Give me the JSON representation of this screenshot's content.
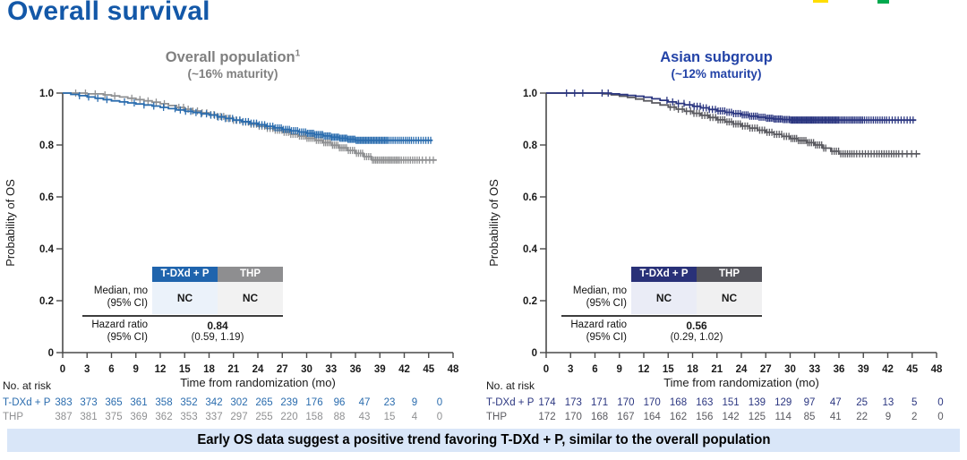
{
  "page": {
    "title": "Overall survival",
    "banner": "Early OS data suggest a positive trend favoring T-DXd + P, similar to the overall population",
    "banner_bg": "#D9E6F8",
    "title_color": "#1358A8",
    "logo_marks": [
      {
        "name": "logo-fragment-yellow",
        "color": "#FFDD00",
        "x": 908,
        "w": 17,
        "h": 3
      },
      {
        "name": "logo-fragment-green",
        "color": "#00A94E",
        "x": 980,
        "w": 13,
        "h": 4
      }
    ]
  },
  "chart_data": [
    {
      "type": "line",
      "subtype": "kaplan-meier",
      "title": "Overall population",
      "title_superscript": "1",
      "subtitle": "(~16% maturity)",
      "title_color": "#808080",
      "xlabel": "Time from randomization (mo)",
      "ylabel": "Probability of OS",
      "xlim": [
        0,
        48
      ],
      "ylim": [
        0,
        1.0
      ],
      "xticks": [
        0,
        3,
        6,
        9,
        12,
        15,
        18,
        21,
        24,
        27,
        30,
        33,
        36,
        39,
        42,
        45,
        48
      ],
      "ytick_labels": [
        "1.0",
        "0.8",
        "0.6",
        "0.4",
        "0.2",
        "0"
      ],
      "ytick_values": [
        1.0,
        0.8,
        0.6,
        0.4,
        0.2,
        0
      ],
      "series": [
        {
          "name": "THP",
          "color": "#8F9092",
          "points": [
            [
              0,
              1
            ],
            [
              3,
              0.997
            ],
            [
              5,
              0.993
            ],
            [
              6,
              0.989
            ],
            [
              7,
              0.985
            ],
            [
              8,
              0.98
            ],
            [
              9,
              0.975
            ],
            [
              10,
              0.97
            ],
            [
              11,
              0.965
            ],
            [
              12,
              0.959
            ],
            [
              13,
              0.952
            ],
            [
              14,
              0.945
            ],
            [
              15,
              0.938
            ],
            [
              16,
              0.931
            ],
            [
              17,
              0.924
            ],
            [
              18,
              0.917
            ],
            [
              19,
              0.91
            ],
            [
              20,
              0.903
            ],
            [
              21,
              0.895
            ],
            [
              22,
              0.888
            ],
            [
              23,
              0.88
            ],
            [
              24,
              0.872
            ],
            [
              25,
              0.864
            ],
            [
              26,
              0.857
            ],
            [
              27,
              0.849
            ],
            [
              28,
              0.841
            ],
            [
              29,
              0.834
            ],
            [
              30,
              0.826
            ],
            [
              31,
              0.818
            ],
            [
              32,
              0.809
            ],
            [
              33,
              0.799
            ],
            [
              34,
              0.789
            ],
            [
              35,
              0.779
            ],
            [
              36,
              0.768
            ],
            [
              37,
              0.755
            ],
            [
              38,
              0.742
            ],
            [
              46,
              0.742
            ]
          ],
          "censor_bands": [
            [
              1,
              7,
              5
            ],
            [
              8,
              13,
              5
            ],
            [
              14,
              18,
              7
            ],
            [
              18,
              22,
              10
            ],
            [
              22,
              26,
              12
            ],
            [
              26,
              29,
              11
            ],
            [
              29,
              32,
              13
            ],
            [
              32,
              35,
              14
            ],
            [
              35,
              38,
              12
            ],
            [
              38,
              41.5,
              18
            ],
            [
              41.5,
              44,
              9
            ],
            [
              44,
              45.8,
              4
            ]
          ]
        },
        {
          "name": "T-DXd + P",
          "color": "#2A6CAE",
          "points": [
            [
              0,
              1
            ],
            [
              1,
              0.995
            ],
            [
              2,
              0.99
            ],
            [
              3,
              0.985
            ],
            [
              4,
              0.98
            ],
            [
              5,
              0.975
            ],
            [
              6,
              0.97
            ],
            [
              7,
              0.966
            ],
            [
              8,
              0.962
            ],
            [
              9,
              0.958
            ],
            [
              10,
              0.954
            ],
            [
              11,
              0.95
            ],
            [
              12,
              0.945
            ],
            [
              13,
              0.94
            ],
            [
              14,
              0.935
            ],
            [
              15,
              0.93
            ],
            [
              16,
              0.925
            ],
            [
              17,
              0.92
            ],
            [
              18,
              0.915
            ],
            [
              19,
              0.908
            ],
            [
              20,
              0.902
            ],
            [
              21,
              0.896
            ],
            [
              22,
              0.89
            ],
            [
              23,
              0.884
            ],
            [
              24,
              0.878
            ],
            [
              25,
              0.872
            ],
            [
              26,
              0.866
            ],
            [
              27,
              0.86
            ],
            [
              28,
              0.855
            ],
            [
              29,
              0.85
            ],
            [
              30,
              0.845
            ],
            [
              31,
              0.84
            ],
            [
              32,
              0.835
            ],
            [
              33,
              0.83
            ],
            [
              34,
              0.826
            ],
            [
              35,
              0.822
            ],
            [
              36,
              0.818
            ],
            [
              45.5,
              0.818
            ]
          ],
          "censor_bands": [
            [
              1.5,
              6,
              4
            ],
            [
              7,
              13,
              5
            ],
            [
              13.5,
              18,
              7
            ],
            [
              18,
              22,
              9
            ],
            [
              22,
              26,
              12
            ],
            [
              26,
              30,
              16
            ],
            [
              30,
              33,
              16
            ],
            [
              33,
              36,
              18
            ],
            [
              36,
              40,
              24
            ],
            [
              40,
              43,
              12
            ],
            [
              43,
              45.4,
              8
            ]
          ]
        }
      ],
      "stats_table": {
        "columns": [
          {
            "label": "T-DXd + P",
            "header_bg": "#1F64AD",
            "cell_bg": "#EBF2FA"
          },
          {
            "label": "THP",
            "header_bg": "#8E8E90",
            "cell_bg": "#F2F2F2"
          }
        ],
        "median_label": [
          "Median, mo",
          "(95% CI)"
        ],
        "median_values": [
          "NC",
          "NC"
        ],
        "hazard_label": [
          "Hazard ratio",
          "(95% CI)"
        ],
        "hazard_value": "0.84",
        "hazard_ci": "(0.59, 1.19)"
      },
      "at_risk": {
        "label": "No. at risk",
        "rows": [
          {
            "name": "T-DXd + P",
            "color": "#2A6CAE",
            "values": [
              383,
              373,
              365,
              361,
              358,
              352,
              342,
              302,
              265,
              239,
              176,
              96,
              47,
              23,
              9,
              0
            ]
          },
          {
            "name": "THP",
            "color": "#8F9092",
            "values": [
              387,
              381,
              375,
              369,
              362,
              353,
              337,
              297,
              255,
              220,
              158,
              88,
              43,
              15,
              4,
              0
            ]
          }
        ]
      }
    },
    {
      "type": "line",
      "subtype": "kaplan-meier",
      "title": "Asian subgroup",
      "title_superscript": "",
      "subtitle": "(~12% maturity)",
      "title_color": "#2343A7",
      "xlabel": "Time from randomization (mo)",
      "ylabel": "Probability of OS",
      "xlim": [
        0,
        48
      ],
      "ylim": [
        0,
        1.0
      ],
      "xticks": [
        0,
        3,
        6,
        9,
        12,
        15,
        18,
        21,
        24,
        27,
        30,
        33,
        36,
        39,
        42,
        45,
        48
      ],
      "ytick_labels": [
        "1.0",
        "0.8",
        "0.6",
        "0.4",
        "0.2",
        "0"
      ],
      "ytick_values": [
        1.0,
        0.8,
        0.6,
        0.4,
        0.2,
        0
      ],
      "series": [
        {
          "name": "THP",
          "color": "#5A5A60",
          "points": [
            [
              0,
              1
            ],
            [
              7,
              0.997
            ],
            [
              8,
              0.993
            ],
            [
              9,
              0.988
            ],
            [
              10,
              0.983
            ],
            [
              11,
              0.977
            ],
            [
              12,
              0.97
            ],
            [
              13,
              0.962
            ],
            [
              14,
              0.954
            ],
            [
              15,
              0.946
            ],
            [
              16,
              0.938
            ],
            [
              17,
              0.93
            ],
            [
              18,
              0.922
            ],
            [
              19,
              0.914
            ],
            [
              20,
              0.906
            ],
            [
              21,
              0.897
            ],
            [
              22,
              0.889
            ],
            [
              23,
              0.881
            ],
            [
              24,
              0.873
            ],
            [
              25,
              0.865
            ],
            [
              26,
              0.857
            ],
            [
              27,
              0.849
            ],
            [
              28,
              0.841
            ],
            [
              29,
              0.833
            ],
            [
              30,
              0.825
            ],
            [
              31,
              0.817
            ],
            [
              32,
              0.809
            ],
            [
              33,
              0.8
            ],
            [
              34,
              0.788
            ],
            [
              35,
              0.776
            ],
            [
              36,
              0.766
            ],
            [
              46,
              0.766
            ]
          ],
          "censor_bands": [
            [
              15,
              18,
              6
            ],
            [
              18,
              21,
              9
            ],
            [
              21,
              24,
              11
            ],
            [
              24,
              27,
              10
            ],
            [
              27,
              30,
              10
            ],
            [
              30,
              32.5,
              11
            ],
            [
              32.5,
              34.5,
              8
            ],
            [
              35,
              38,
              11
            ],
            [
              38,
              40.5,
              7
            ],
            [
              40.5,
              43.5,
              10
            ],
            [
              43.5,
              45.8,
              4
            ]
          ]
        },
        {
          "name": "T-DXd + P",
          "color": "#2B3680",
          "points": [
            [
              0,
              1
            ],
            [
              8,
              0.997
            ],
            [
              9,
              0.994
            ],
            [
              10,
              0.991
            ],
            [
              11,
              0.988
            ],
            [
              12,
              0.984
            ],
            [
              13,
              0.978
            ],
            [
              14,
              0.972
            ],
            [
              15,
              0.966
            ],
            [
              16,
              0.96
            ],
            [
              17,
              0.955
            ],
            [
              18,
              0.949
            ],
            [
              19,
              0.943
            ],
            [
              20,
              0.937
            ],
            [
              21,
              0.931
            ],
            [
              22,
              0.926
            ],
            [
              23,
              0.921
            ],
            [
              24,
              0.916
            ],
            [
              25,
              0.911
            ],
            [
              26,
              0.907
            ],
            [
              27,
              0.903
            ],
            [
              28,
              0.9
            ],
            [
              29,
              0.898
            ],
            [
              30,
              0.896
            ],
            [
              45.5,
              0.896
            ]
          ],
          "censor_bands": [
            [
              2,
              5,
              3
            ],
            [
              6.5,
              8,
              2
            ],
            [
              14.5,
              18,
              5
            ],
            [
              18,
              21,
              8
            ],
            [
              21,
              24,
              11
            ],
            [
              24,
              27,
              13
            ],
            [
              27,
              30,
              16
            ],
            [
              30,
              33,
              22
            ],
            [
              33,
              36,
              20
            ],
            [
              36,
              39,
              15
            ],
            [
              39,
              42,
              11
            ],
            [
              42,
              45.3,
              9
            ]
          ]
        }
      ],
      "stats_table": {
        "columns": [
          {
            "label": "T-DXd + P",
            "header_bg": "#293178",
            "cell_bg": "#EAECF6"
          },
          {
            "label": "THP",
            "header_bg": "#55555C",
            "cell_bg": "#F0F0F1"
          }
        ],
        "median_label": [
          "Median, mo",
          "(95% CI)"
        ],
        "median_values": [
          "NC",
          "NC"
        ],
        "hazard_label": [
          "Hazard ratio",
          "(95% CI)"
        ],
        "hazard_value": "0.56",
        "hazard_ci": "(0.29, 1.02)"
      },
      "at_risk": {
        "label": "No. at risk",
        "rows": [
          {
            "name": "T-DXd + P",
            "color": "#2B3680",
            "values": [
              174,
              173,
              171,
              170,
              170,
              168,
              163,
              151,
              139,
              129,
              97,
              47,
              25,
              13,
              5,
              0
            ]
          },
          {
            "name": "THP",
            "color": "#5A5A60",
            "values": [
              172,
              170,
              168,
              167,
              164,
              162,
              156,
              142,
              125,
              114,
              85,
              41,
              22,
              9,
              2,
              0
            ]
          }
        ]
      }
    }
  ]
}
